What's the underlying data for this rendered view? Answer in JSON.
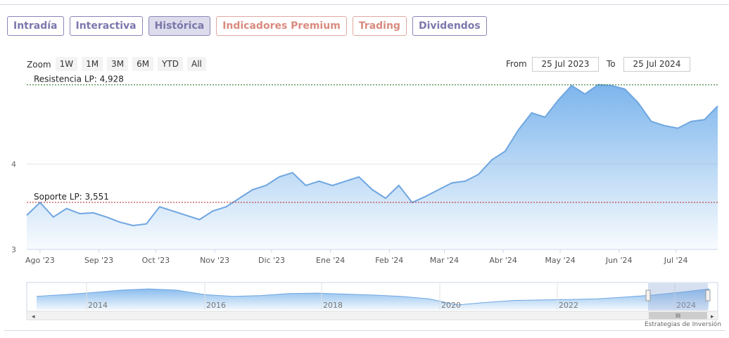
{
  "tabs": [
    {
      "label": "Intradía"
    },
    {
      "label": "Interactiva"
    },
    {
      "label": "Histórica"
    },
    {
      "label": "Indicadores Premium"
    },
    {
      "label": "Trading"
    },
    {
      "label": "Dividendos"
    }
  ],
  "zoom": {
    "label": "Zoom",
    "buttons": [
      "1W",
      "1M",
      "3M",
      "6M",
      "YTD",
      "All"
    ]
  },
  "range": {
    "from_label": "From",
    "from_value": "25 Jul 2023",
    "to_label": "To",
    "to_value": "25 Jul 2024"
  },
  "credit": "Estrategias de Inversión",
  "colors": {
    "accent": "#7cb5ec",
    "line": "#6fa6e0",
    "tab": "#7d78ad",
    "premium_tab": "#d98a7e"
  },
  "chart_data": {
    "type": "area",
    "ylim": [
      3,
      5
    ],
    "yticks": [
      "3",
      "4"
    ],
    "xticks": [
      "Ago '23",
      "Sep '23",
      "Oct '23",
      "Nov '23",
      "Dic '23",
      "Ene '24",
      "Feb '24",
      "Mar '24",
      "Abr '24",
      "May '24",
      "Jun '24",
      "Jul '24"
    ],
    "lines": [
      {
        "label": "Resistencia LP: 4,928",
        "value": 4.928,
        "color": "#1c6b1c"
      },
      {
        "label": "Soporte LP: 3,551",
        "value": 3.551,
        "color": "#b22222"
      }
    ],
    "x": [
      "2023-07-25",
      "2023-08-01",
      "2023-08-08",
      "2023-08-15",
      "2023-08-22",
      "2023-08-29",
      "2023-09-05",
      "2023-09-12",
      "2023-09-19",
      "2023-09-26",
      "2023-10-03",
      "2023-10-10",
      "2023-10-17",
      "2023-10-24",
      "2023-10-31",
      "2023-11-07",
      "2023-11-14",
      "2023-11-21",
      "2023-11-28",
      "2023-12-05",
      "2023-12-12",
      "2023-12-19",
      "2023-12-26",
      "2024-01-02",
      "2024-01-09",
      "2024-01-16",
      "2024-01-23",
      "2024-01-30",
      "2024-02-06",
      "2024-02-13",
      "2024-02-20",
      "2024-02-27",
      "2024-03-05",
      "2024-03-12",
      "2024-03-19",
      "2024-03-26",
      "2024-04-02",
      "2024-04-09",
      "2024-04-16",
      "2024-04-23",
      "2024-04-30",
      "2024-05-07",
      "2024-05-14",
      "2024-05-21",
      "2024-05-28",
      "2024-06-04",
      "2024-06-11",
      "2024-06-18",
      "2024-06-25",
      "2024-07-02",
      "2024-07-09",
      "2024-07-16",
      "2024-07-23"
    ],
    "values": [
      3.4,
      3.55,
      3.38,
      3.48,
      3.42,
      3.43,
      3.38,
      3.32,
      3.28,
      3.3,
      3.5,
      3.45,
      3.4,
      3.35,
      3.45,
      3.5,
      3.6,
      3.7,
      3.75,
      3.85,
      3.9,
      3.75,
      3.8,
      3.75,
      3.8,
      3.85,
      3.7,
      3.6,
      3.75,
      3.55,
      3.62,
      3.7,
      3.78,
      3.8,
      3.88,
      4.05,
      4.15,
      4.4,
      4.6,
      4.55,
      4.75,
      4.92,
      4.82,
      4.93,
      4.92,
      4.88,
      4.72,
      4.5,
      4.45,
      4.42,
      4.5,
      4.52,
      4.68
    ],
    "navigator": {
      "years": [
        "2014",
        "2016",
        "2018",
        "2020",
        "2022",
        "2024"
      ],
      "values": [
        0.55,
        0.62,
        0.7,
        0.8,
        0.85,
        0.8,
        0.62,
        0.55,
        0.58,
        0.66,
        0.68,
        0.64,
        0.6,
        0.55,
        0.45,
        0.2,
        0.3,
        0.38,
        0.4,
        0.42,
        0.45,
        0.52,
        0.6,
        0.72,
        0.85
      ]
    }
  }
}
